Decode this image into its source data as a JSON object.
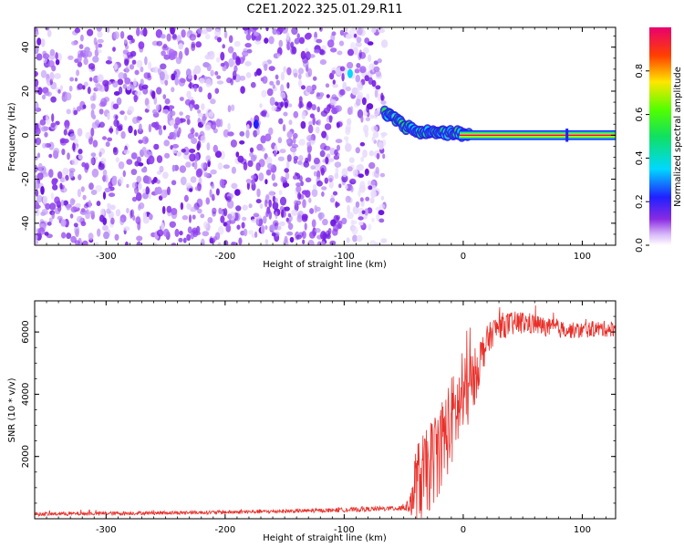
{
  "title": "C2E1.2022.325.01.29.R11",
  "colors": {
    "snr_line": "#e8302a",
    "spectrogram_noise": "#7a1fe6",
    "spectrogram_peak": "#d4103a",
    "axis": "#000000"
  },
  "chart_data": [
    {
      "type": "heatmap",
      "name": "spectrogram",
      "xlabel": "Height of straight line (km)",
      "ylabel": "Frequency (Hz)",
      "xlim": [
        -360,
        128
      ],
      "ylim": [
        -50,
        49
      ],
      "xticks": [
        -300,
        -200,
        -100,
        0,
        100
      ],
      "yticks": [
        -40,
        -20,
        0,
        20,
        40
      ],
      "grid": false,
      "colorbar": {
        "label": "Normalized spectral amplitude",
        "range": [
          0.0,
          1.0
        ],
        "ticks": [
          0.0,
          0.2,
          0.4,
          0.6,
          0.8
        ],
        "colormap": "rainbow (white-violet-blue-cyan-green-yellow-red-magenta)"
      },
      "noise_region": {
        "x_range": [
          -360,
          -66
        ],
        "freq_range": [
          -50,
          49
        ],
        "level": 0.05
      },
      "signal_track": [
        {
          "x": -66,
          "freq": 10,
          "amp": 0.5
        },
        {
          "x": -58,
          "freq": 8,
          "amp": 0.6
        },
        {
          "x": -50,
          "freq": 4,
          "amp": 0.55
        },
        {
          "x": -42,
          "freq": 3,
          "amp": 0.6
        },
        {
          "x": -34,
          "freq": 1,
          "amp": 0.7
        },
        {
          "x": -25,
          "freq": 2,
          "amp": 0.75
        },
        {
          "x": -15,
          "freq": 1,
          "amp": 0.8
        },
        {
          "x": -5,
          "freq": 1,
          "amp": 0.85
        },
        {
          "x": 5,
          "freq": 0,
          "amp": 0.95
        },
        {
          "x": 128,
          "freq": 0,
          "amp": 1.0
        }
      ]
    },
    {
      "type": "line",
      "name": "snr",
      "xlabel": "Height of straight line (km)",
      "ylabel": "SNR (10 * v/v)",
      "xlim": [
        -360,
        128
      ],
      "ylim": [
        0,
        7000
      ],
      "xticks": [
        -300,
        -200,
        -100,
        0,
        100
      ],
      "yticks": [
        2000,
        4000,
        6000
      ],
      "grid": false,
      "series": [
        {
          "x": [
            -360,
            -300,
            -250,
            -200,
            -150,
            -100,
            -60,
            -45,
            -40,
            -35,
            -30,
            -25,
            -20,
            -15,
            -10,
            -5,
            0,
            5,
            10,
            15,
            20,
            25,
            30,
            40,
            50,
            60,
            70,
            80,
            90,
            100,
            110,
            128
          ],
          "y": [
            150,
            170,
            190,
            210,
            240,
            280,
            330,
            400,
            1100,
            1300,
            1500,
            1900,
            2300,
            2700,
            3100,
            3500,
            3800,
            4200,
            4600,
            5200,
            5700,
            6000,
            6200,
            6250,
            6300,
            6250,
            6150,
            6100,
            6050,
            6050,
            6100,
            6100
          ],
          "noise_amplitude": [
            60,
            60,
            60,
            60,
            60,
            70,
            80,
            200,
            1300,
            1400,
            1400,
            1500,
            1500,
            1500,
            1500,
            1400,
            1300,
            1200,
            900,
            700,
            500,
            450,
            420,
            400,
            380,
            340,
            300,
            280,
            260,
            260,
            260,
            260
          ]
        }
      ]
    }
  ]
}
